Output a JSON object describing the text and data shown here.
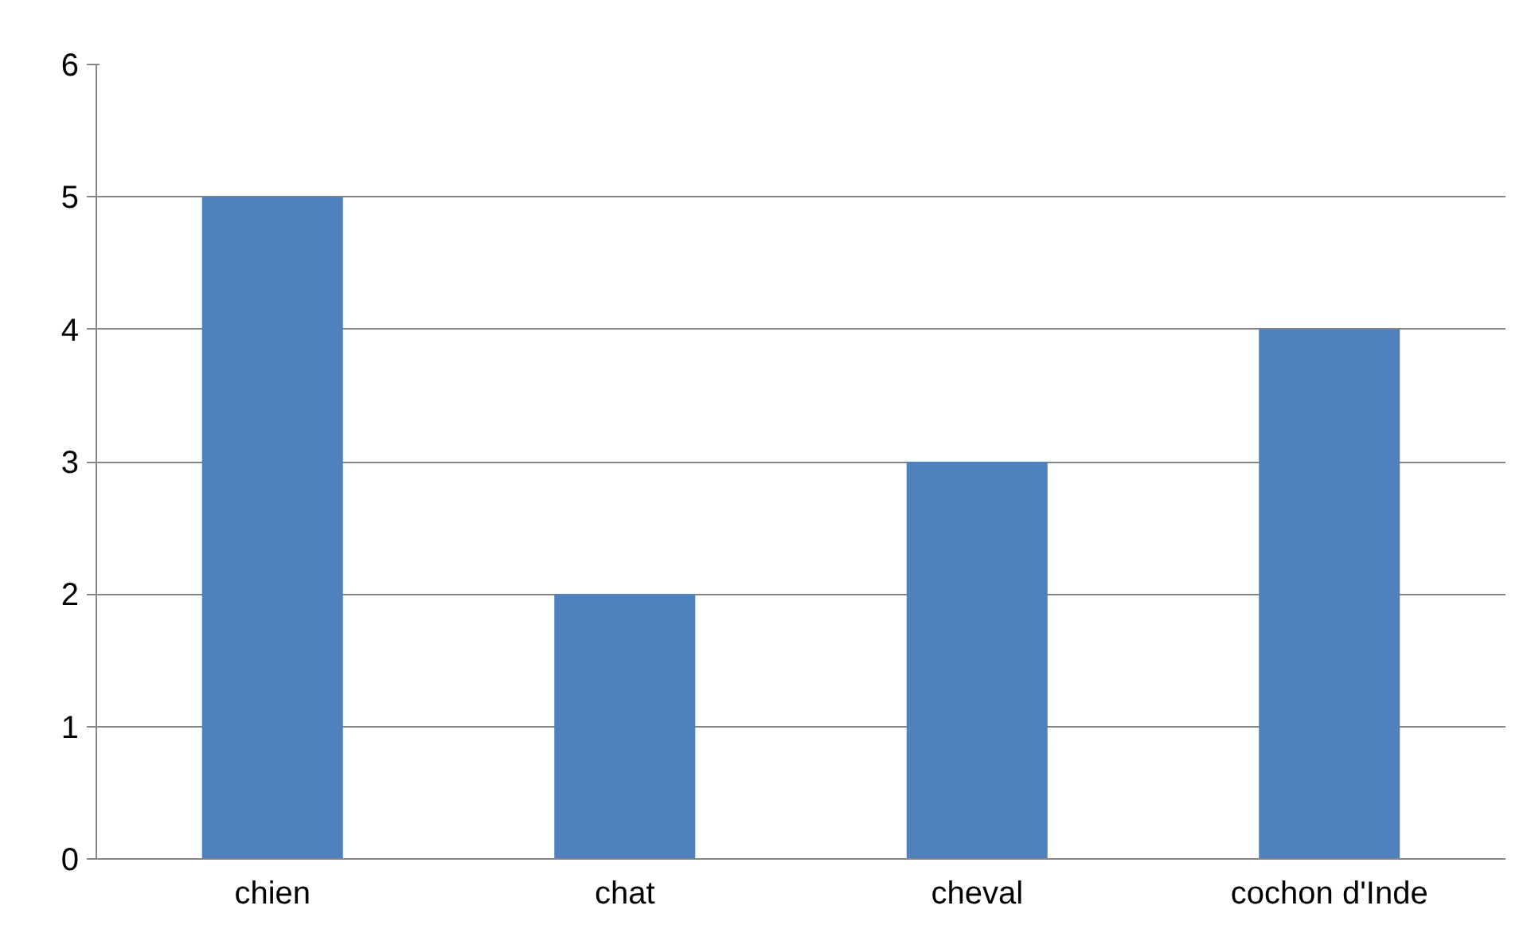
{
  "chart_data": {
    "type": "bar",
    "categories": [
      "chien",
      "chat",
      "cheval",
      "cochon d'Inde"
    ],
    "values": [
      5,
      2,
      3,
      4
    ],
    "color": "#4f81bd",
    "ylim": [
      0,
      6
    ],
    "yticks": [
      0,
      1,
      2,
      3,
      4,
      5,
      6
    ],
    "grid": "y"
  }
}
